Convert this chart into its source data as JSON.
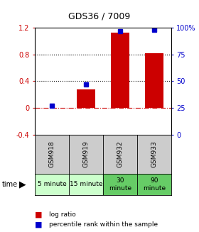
{
  "title": "GDS36 / 7009",
  "categories": [
    "GSM918",
    "GSM919",
    "GSM932",
    "GSM933"
  ],
  "time_labels": [
    "5 minute",
    "15 minute",
    "30\nminute",
    "90\nminute"
  ],
  "log_ratios": [
    0.0,
    0.28,
    1.13,
    0.82
  ],
  "percentile_ranks": [
    27,
    47,
    97,
    98
  ],
  "bar_color": "#cc0000",
  "dot_color": "#0000cc",
  "ylim_left": [
    -0.4,
    1.2
  ],
  "ylim_right": [
    0,
    100
  ],
  "yticks_left": [
    -0.4,
    0.0,
    0.4,
    0.8,
    1.2
  ],
  "yticks_right": [
    0,
    25,
    50,
    75,
    100
  ],
  "ytick_labels_left": [
    "-0.4",
    "0",
    "0.4",
    "0.8",
    "1.2"
  ],
  "ytick_labels_right": [
    "0",
    "25",
    "50",
    "75",
    "100%"
  ],
  "hlines_dotted": [
    0.4,
    0.8
  ],
  "hline_dashed": 0.0,
  "bg_color": "#ffffff",
  "plot_bg": "#ffffff",
  "time_colors": [
    "#ccffcc",
    "#ccffcc",
    "#66cc66",
    "#66cc66"
  ],
  "sample_bg": "#cccccc",
  "bar_width": 0.55,
  "legend_log": "log ratio",
  "legend_pct": "percentile rank within the sample"
}
